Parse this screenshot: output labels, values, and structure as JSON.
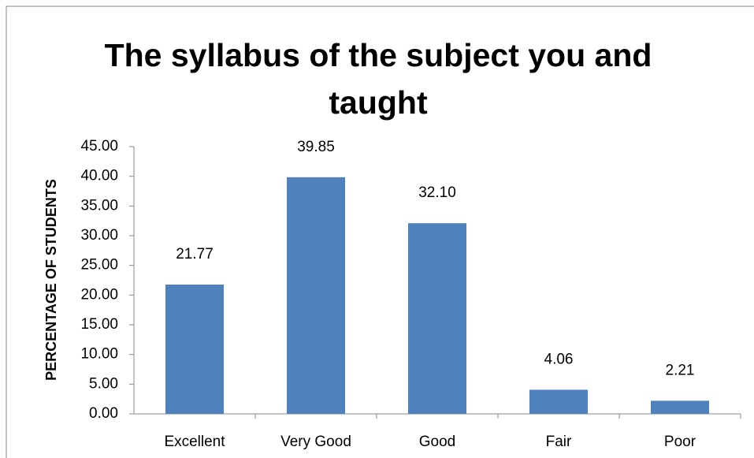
{
  "chart_data": {
    "type": "bar",
    "title": "The syllabus of the subject you and taught",
    "y_label": "PERCENTAGE OF STUDENTS",
    "categories": [
      "Excellent",
      "Very Good",
      "Good",
      "Fair",
      "Poor"
    ],
    "values": [
      21.77,
      39.85,
      32.1,
      4.06,
      2.21
    ],
    "value_labels": [
      "21.77",
      "39.85",
      "32.10",
      "4.06",
      "2.21"
    ],
    "color": "#4f81bd",
    "ylim": [
      0,
      45
    ],
    "yticks": [
      {
        "value": 0,
        "label": "0.00"
      },
      {
        "value": 5,
        "label": "5.00"
      },
      {
        "value": 10,
        "label": "10.00"
      },
      {
        "value": 15,
        "label": "15.00"
      },
      {
        "value": 20,
        "label": "20.00"
      },
      {
        "value": 25,
        "label": "25.00"
      },
      {
        "value": 30,
        "label": "30.00"
      },
      {
        "value": 35,
        "label": "35.00"
      },
      {
        "value": 40,
        "label": "40.00"
      },
      {
        "value": 45,
        "label": "45.00"
      }
    ],
    "grid": false
  }
}
